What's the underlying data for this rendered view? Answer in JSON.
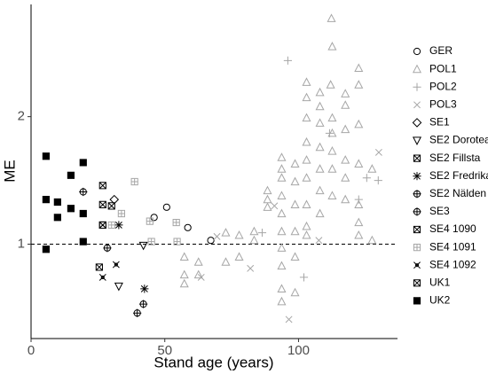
{
  "chart_data": {
    "type": "scatter",
    "xlabel": "Stand age (years)",
    "ylabel": "ME",
    "xlim": [
      0,
      137
    ],
    "ylim": [
      0.26,
      2.88
    ],
    "xticks": [
      0,
      50,
      100
    ],
    "yticks": [
      1,
      2
    ],
    "reference_line": 1,
    "legend": "right",
    "series": [
      {
        "name": "GER",
        "color": "#000000",
        "marker": "circle",
        "x": [
          46,
          50.7,
          58.6,
          67.2
        ],
        "values": [
          1.21,
          1.29,
          1.13,
          1.03
        ]
      },
      {
        "name": "POL1",
        "color": "#a6a6a6",
        "marker": "triangle",
        "x": [
          112.3,
          112.6,
          122.5,
          112,
          103,
          103,
          103,
          108,
          108,
          108,
          112.6,
          112.6,
          112.6,
          117.5,
          117.5,
          117.5,
          122.5,
          122.5,
          93.7,
          93.7,
          93.7,
          93.7,
          93.7,
          93.7,
          93.7,
          93.7,
          93.7,
          93.7,
          98.7,
          98.7,
          98.7,
          98.7,
          98.7,
          98.7,
          103,
          103,
          103,
          103,
          103,
          103,
          108,
          108,
          108,
          108,
          112.6,
          112.6,
          117.5,
          117.5,
          117.5,
          122.5,
          122.5,
          122.5,
          122.5,
          88.4,
          88.4,
          88.4,
          77.8,
          77.8,
          83.4,
          83.4,
          72.8,
          72.8,
          62.6,
          62.6,
          57.3,
          57.3,
          57.3,
          127.5,
          127.5
        ],
        "values": [
          2.77,
          2.55,
          2.38,
          2.25,
          2.27,
          2.15,
          1.99,
          2.19,
          2.08,
          1.95,
          1.99,
          1.87,
          1.73,
          2.18,
          2.09,
          1.9,
          2.25,
          1.94,
          1.68,
          1.59,
          1.52,
          1.38,
          1.24,
          1.1,
          0.97,
          0.83,
          0.65,
          0.55,
          1.63,
          1.49,
          1.31,
          1.1,
          0.9,
          0.62,
          1.8,
          1.66,
          1.52,
          1.31,
          1.14,
          1.07,
          1.76,
          1.59,
          1.42,
          1.24,
          1.59,
          1.38,
          1.66,
          1.52,
          1.35,
          1.63,
          1.31,
          1.17,
          1.07,
          1.42,
          1.35,
          1.29,
          1.07,
          0.9,
          1.1,
          1.03,
          1.09,
          0.86,
          0.86,
          0.76,
          0.76,
          0.69,
          0.9,
          1.03,
          1.59
        ]
      },
      {
        "name": "POL2",
        "color": "#a6a6a6",
        "marker": "plus",
        "x": [
          96,
          111.6,
          129.8,
          86.4,
          102,
          122.5,
          125.5
        ],
        "values": [
          2.44,
          1.87,
          1.5,
          1.09,
          0.74,
          1.35,
          1.52
        ]
      },
      {
        "name": "POL3",
        "color": "#a6a6a6",
        "marker": "x",
        "x": [
          96.4,
          130,
          82,
          63.6,
          107.6,
          91,
          69.5
        ],
        "values": [
          0.41,
          1.72,
          0.81,
          0.74,
          1.03,
          1.3,
          1.06
        ]
      },
      {
        "name": "SE1",
        "color": "#000000",
        "marker": "diamond",
        "x": [
          31.1
        ],
        "values": [
          1.35
        ]
      },
      {
        "name": "SE2 Dorotea",
        "color": "#000000",
        "marker": "triangle-down",
        "x": [
          32.8,
          42
        ],
        "values": [
          0.67,
          0.99
        ]
      },
      {
        "name": "SE2 Fillsta",
        "color": "#000000",
        "marker": "square-x",
        "x": [
          26.8
        ],
        "values": [
          1.15
        ]
      },
      {
        "name": "SE2 Fredrika",
        "color": "#000000",
        "marker": "asterisk",
        "x": [
          42.4,
          32.8
        ],
        "values": [
          0.65,
          1.15
        ]
      },
      {
        "name": "SE2 Nälden",
        "color": "#000000",
        "marker": "circle-plus",
        "x": [
          39.7
        ],
        "values": [
          0.46
        ]
      },
      {
        "name": "SE3",
        "color": "#000000",
        "marker": "circle-plus",
        "x": [
          19.5,
          28.5,
          42
        ],
        "values": [
          1.41,
          0.97,
          0.53
        ]
      },
      {
        "name": "SE4 1090",
        "color": "#000000",
        "marker": "hourglass",
        "x": [
          26.8,
          30.1
        ],
        "values": [
          1.31,
          1.3
        ]
      },
      {
        "name": "SE4 1091",
        "color": "#a6a6a6",
        "marker": "square-plus",
        "x": [
          30.1,
          33.8,
          38.7,
          44.4,
          45,
          54.6,
          54.3
        ],
        "values": [
          1.15,
          1.24,
          1.49,
          1.18,
          1.02,
          1.02,
          1.17
        ]
      },
      {
        "name": "SE4 1092",
        "color": "#000000",
        "marker": "star-x",
        "x": [
          26.8,
          31.8
        ],
        "values": [
          0.74,
          0.84
        ]
      },
      {
        "name": "UK1",
        "color": "#000000",
        "marker": "square-x",
        "x": [
          26.8,
          26.8,
          25.5
        ],
        "values": [
          1.46,
          1.15,
          0.82
        ]
      },
      {
        "name": "UK2",
        "color": "#000000",
        "marker": "square-filled",
        "x": [
          5.6,
          5.6,
          5.6,
          9.9,
          9.9,
          14.9,
          14.9,
          19.5,
          19.5,
          19.5
        ],
        "values": [
          1.69,
          1.35,
          0.96,
          1.33,
          1.21,
          1.54,
          1.28,
          1.64,
          1.24,
          1.02
        ]
      }
    ]
  }
}
